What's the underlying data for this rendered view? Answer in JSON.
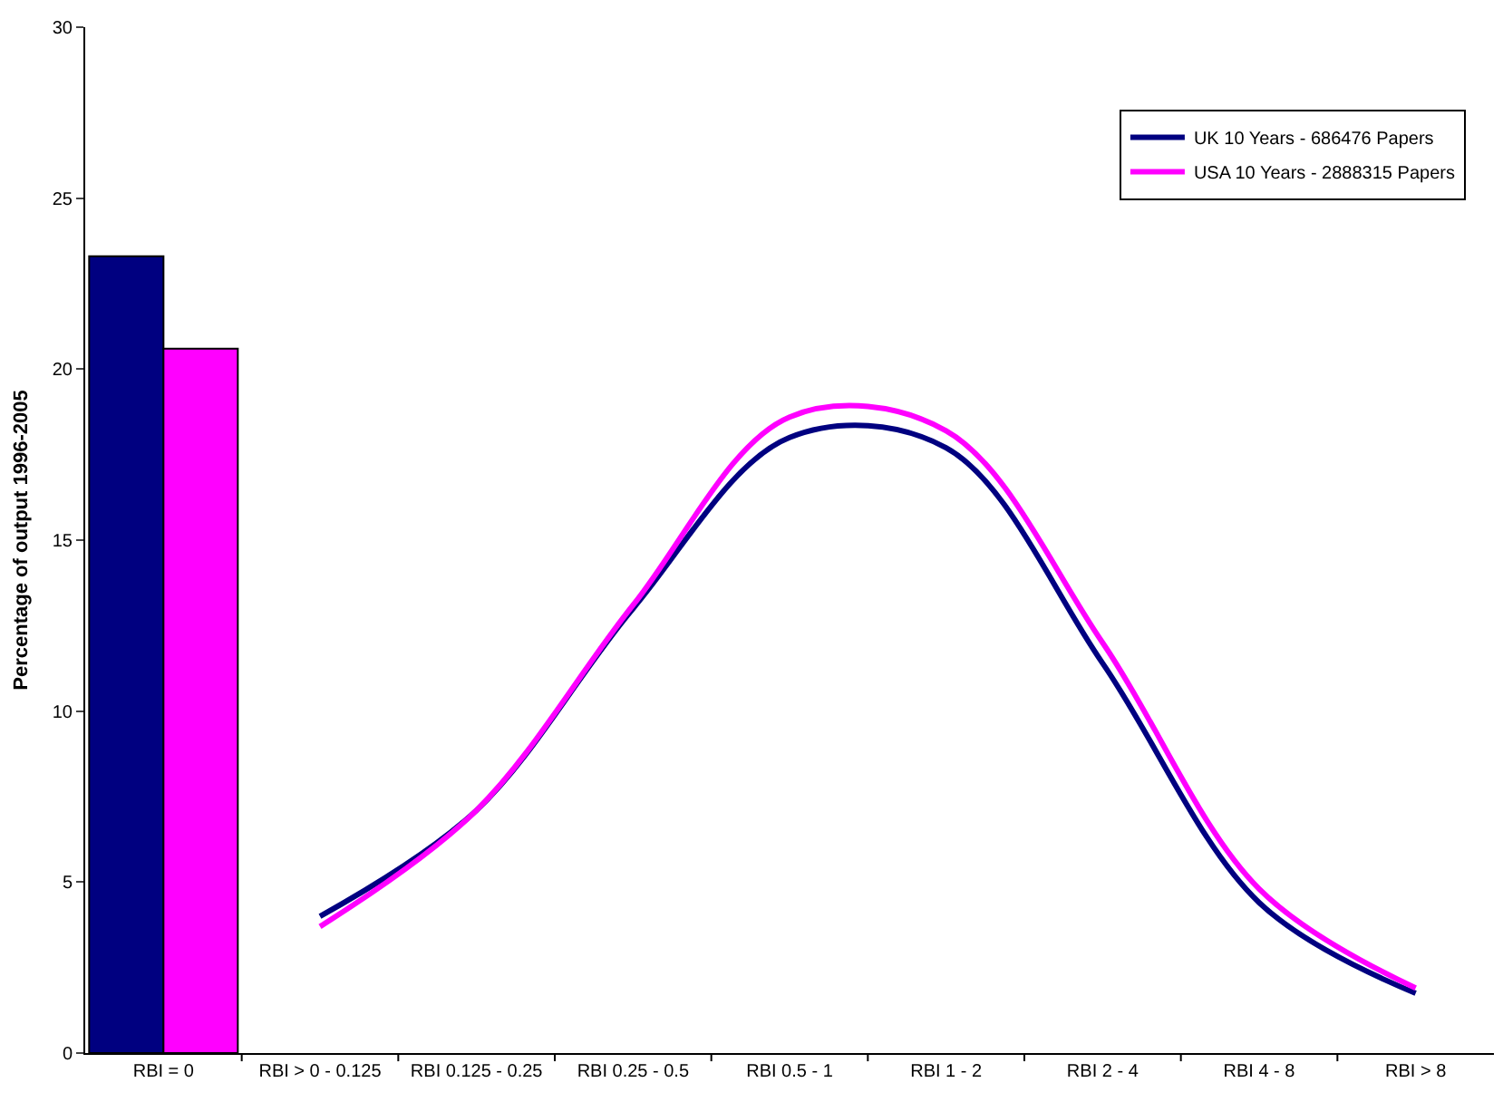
{
  "chart_data": {
    "type": "line",
    "ylabel": "Percentage of output 1996-2005",
    "categories": [
      "RBI = 0",
      "RBI > 0 - 0.125",
      "RBI 0.125 - 0.25",
      "RBI 0.25 - 0.5",
      "RBI 0.5 - 1",
      "RBI 1 - 2",
      "RBI 2 - 4",
      "RBI 4 - 8",
      "RBI > 8"
    ],
    "series": [
      {
        "type": "bar",
        "color": "#000080",
        "values": [
          23.3,
          null,
          null,
          null,
          null,
          null,
          null,
          null,
          null
        ]
      },
      {
        "type": "bar",
        "color": "#ff00ff",
        "values": [
          20.6,
          null,
          null,
          null,
          null,
          null,
          null,
          null,
          null
        ]
      },
      {
        "name": "UK 10 Years - 686476 Papers",
        "color": "#000080",
        "values": [
          null,
          4.0,
          7.1,
          13.0,
          18.0,
          17.7,
          11.4,
          4.4,
          1.75
        ]
      },
      {
        "name": "USA 10 Years - 2888315 Papers",
        "color": "#ff00ff",
        "values": [
          null,
          3.7,
          7.1,
          13.1,
          18.6,
          18.2,
          12.0,
          4.8,
          1.9
        ]
      }
    ],
    "ylim": [
      0,
      30
    ],
    "yticks": [
      0,
      5,
      10,
      15,
      20,
      25,
      30
    ],
    "grid": false,
    "legend": "top right",
    "marker": "none",
    "line_style": "solid"
  }
}
